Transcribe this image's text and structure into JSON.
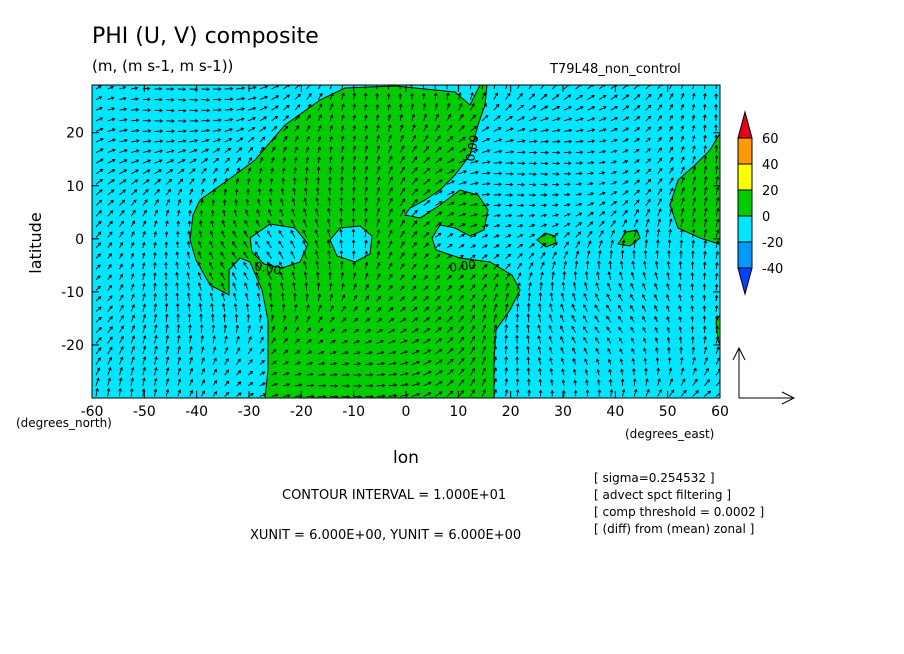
{
  "chart_data": {
    "type": "contour",
    "title": "PHI (U, V) composite",
    "units_label": "(m, (m s-1, m s-1))",
    "run_label": "T79L48_non_control",
    "xlabel": "lon",
    "ylabel": "latitude",
    "x_units_note": "(degrees_east)",
    "y_units_note": "(degrees_north)",
    "xlim": [
      -60,
      60
    ],
    "ylim": [
      -30,
      29
    ],
    "x_ticks": [
      -60,
      -50,
      -40,
      -30,
      -20,
      -10,
      0,
      10,
      20,
      30,
      40,
      50,
      60
    ],
    "y_ticks": [
      -20,
      -10,
      0,
      10,
      20
    ],
    "contour_labels": [
      "0.00",
      "0.00",
      "0.00"
    ],
    "colorbar": {
      "levels": [
        60,
        40,
        20,
        0,
        -20,
        -40
      ],
      "colors": [
        "#e8001a",
        "#ff9900",
        "#ffff00",
        "#00cc00",
        "#00e6ff",
        "#0099ff",
        "#0044ff"
      ],
      "field_colors": {
        "positive": "#00cc00",
        "negative": "#00e6ff"
      }
    },
    "notes": [
      "[ sigma=0.254532 ]",
      "[ advect spct filtering ]",
      "[ comp threshold = 0.0002 ]",
      "[ (diff) from (mean) zonal ]"
    ],
    "contour_interval": "CONTOUR INTERVAL = 1.000E+01",
    "vector_units": "XUNIT = 6.000E+00, YUNIT = 6.000E+00"
  }
}
